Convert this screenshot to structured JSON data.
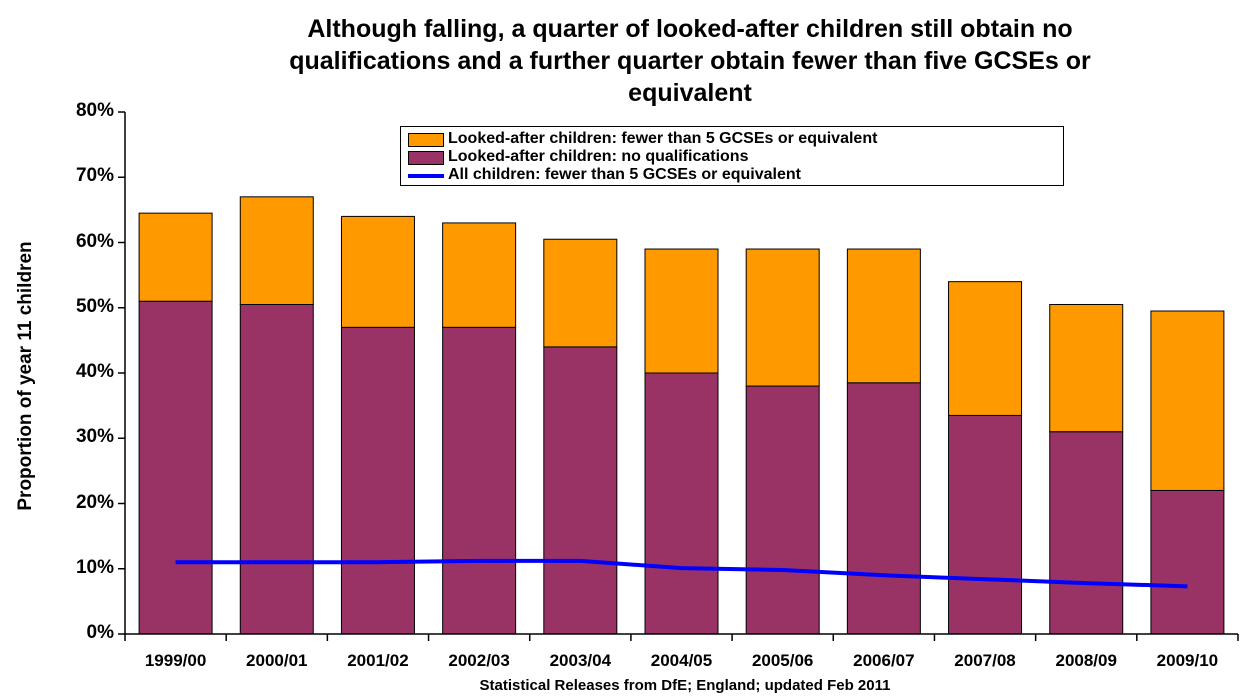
{
  "chart_data": {
    "type": "bar",
    "stacked": true,
    "title_lines": [
      "Although falling, a quarter of looked-after children still obtain no",
      "qualifications and a further quarter obtain fewer than five GCSEs or",
      "equivalent"
    ],
    "ylabel": "Proportion of year 11 children",
    "xlabel": "Statistical Releases from DfE; England; updated Feb 2011",
    "ylim": [
      0,
      80
    ],
    "yticks": [
      "0%",
      "10%",
      "20%",
      "30%",
      "40%",
      "50%",
      "60%",
      "70%",
      "80%"
    ],
    "categories": [
      "1999/00",
      "2000/01",
      "2001/02",
      "2002/03",
      "2003/04",
      "2004/05",
      "2005/06",
      "2006/07",
      "2007/08",
      "2008/09",
      "2009/10"
    ],
    "series": [
      {
        "name": "Looked-after children: no qualifications",
        "kind": "bar",
        "color": "#993366",
        "values": [
          51,
          50.5,
          47,
          47,
          44,
          40,
          38,
          38.5,
          33.5,
          31,
          22
        ]
      },
      {
        "name": "Looked-after children: fewer than 5 GCSEs or equivalent",
        "kind": "bar",
        "color": "#ff9900",
        "values": [
          13.5,
          16.5,
          17,
          16,
          16.5,
          19,
          21,
          20.5,
          20.5,
          19.5,
          27.5
        ]
      },
      {
        "name": "All children: fewer than 5 GCSEs or equivalent",
        "kind": "line",
        "color": "#0000ff",
        "values": [
          11,
          11,
          11,
          11.2,
          11.2,
          10.1,
          9.8,
          9.0,
          8.4,
          7.8,
          7.3
        ]
      }
    ],
    "legend": {
      "placement": "top-center",
      "entries": [
        "Looked-after children: fewer than 5 GCSEs or equivalent",
        "Looked-after children: no qualifications",
        "All children: fewer than 5 GCSEs or equivalent"
      ]
    },
    "grid": false
  }
}
